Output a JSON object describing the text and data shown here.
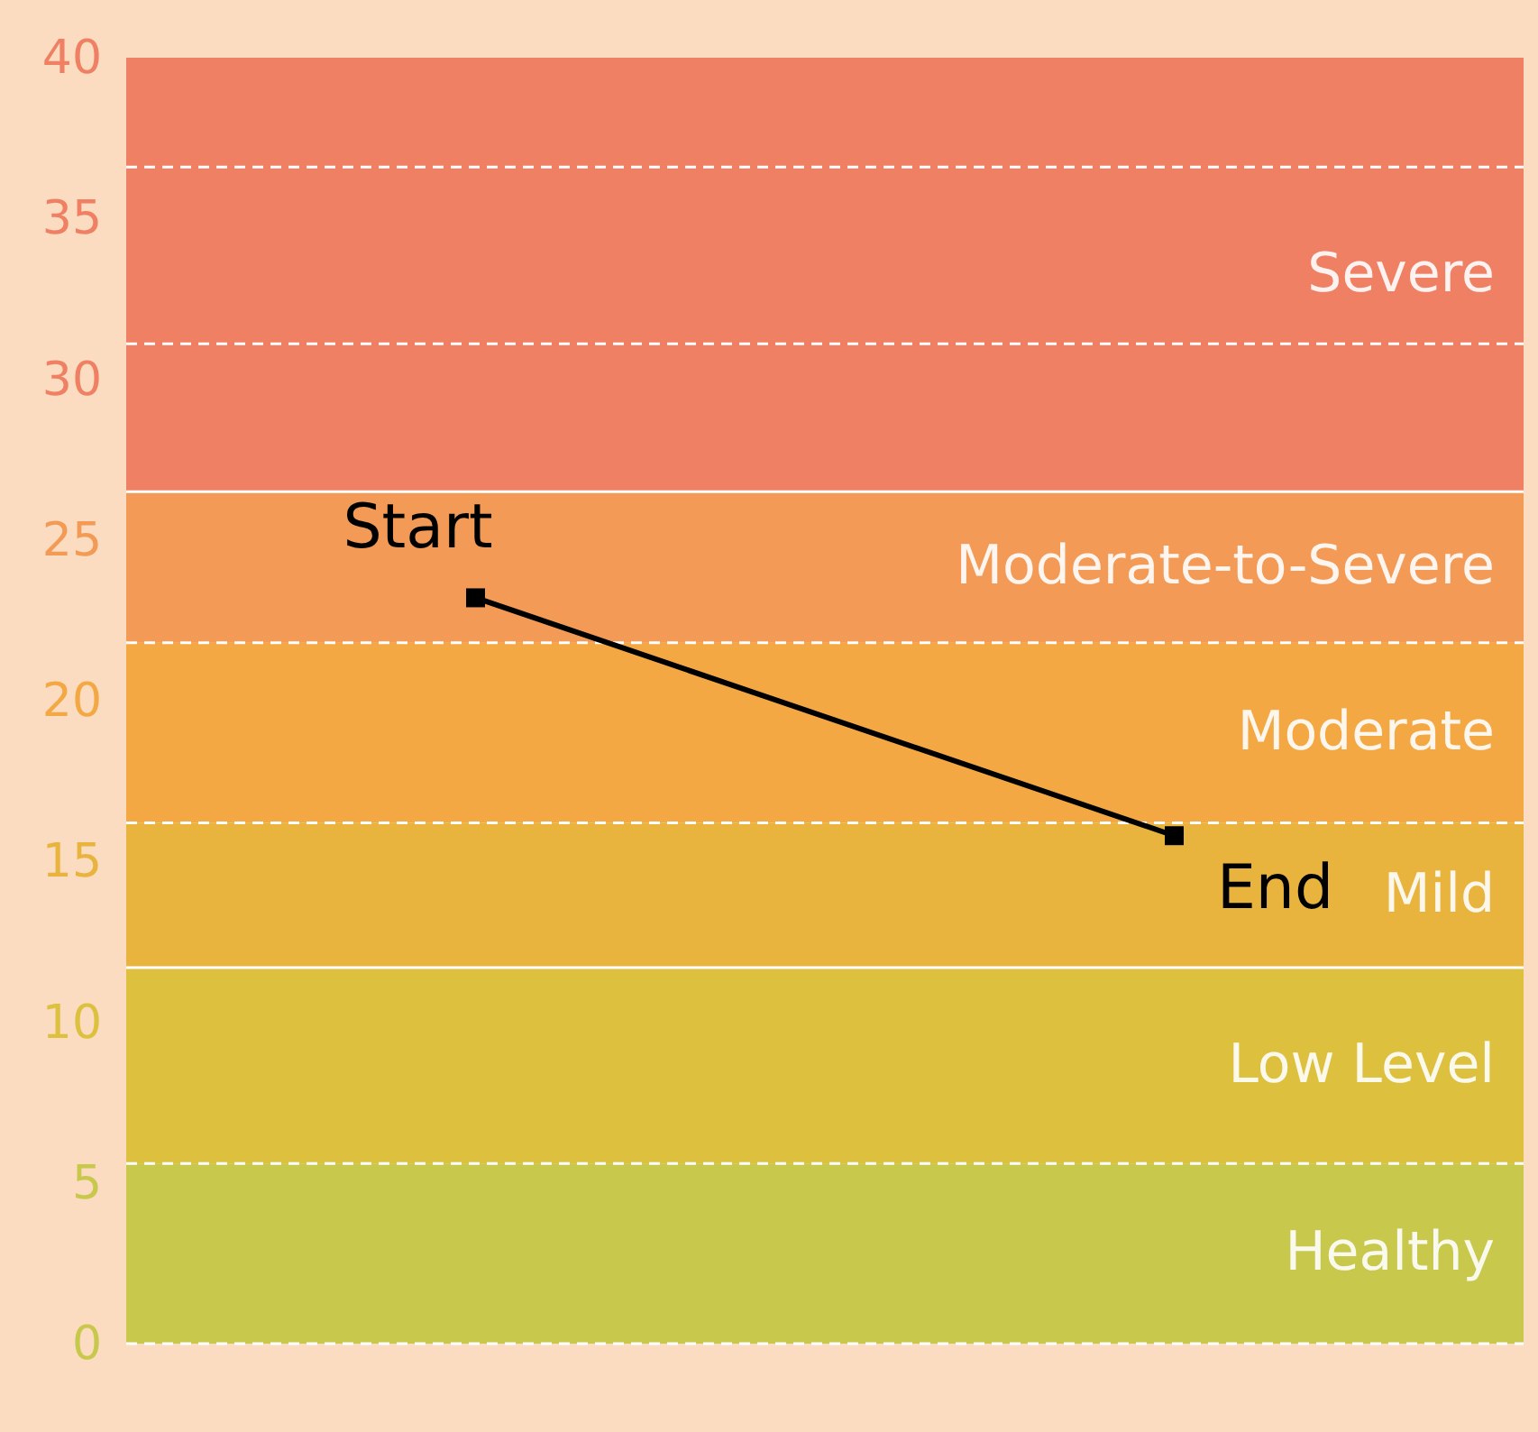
{
  "chart_data": {
    "type": "line",
    "categories": [
      null,
      null
    ],
    "series": [
      {
        "color": "#000000",
        "values": [
          23.2,
          15.8
        ]
      }
    ],
    "marker": "square",
    "line_style": "solid",
    "ylim": [
      0,
      40
    ],
    "yticks": [
      0,
      5,
      10,
      15,
      20,
      25,
      30,
      35,
      40
    ],
    "grid": false,
    "tick_labels": "y",
    "bands": [
      {
        "axis": "y",
        "from": 0,
        "to": 5.6,
        "label": "Healthy",
        "color": "#c8c84c"
      },
      {
        "axis": "y",
        "from": 5.6,
        "to": 11.7,
        "label": "Low Level",
        "color": "#dcc03e"
      },
      {
        "axis": "y",
        "from": 11.7,
        "to": 16.2,
        "label": "Mild",
        "color": "#e9b43e"
      },
      {
        "axis": "y",
        "from": 16.2,
        "to": 21.8,
        "label": "Moderate",
        "color": "#f3a844"
      },
      {
        "axis": "y",
        "from": 21.8,
        "to": 26.5,
        "label": "Moderate-to-Severe",
        "color": "#f29a56"
      },
      {
        "axis": "y",
        "from": 26.5,
        "to": 40,
        "label": "Severe",
        "color": "#ef8064"
      }
    ],
    "ref_lines": [
      {
        "axis": "y",
        "value": 0,
        "line_style": "dashed",
        "color": "#ffffff"
      },
      {
        "axis": "y",
        "value": 5.6,
        "line_style": "dashed",
        "color": "#ffffff"
      },
      {
        "axis": "y",
        "value": 11.7,
        "line_style": "solid",
        "color": "#ffffff"
      },
      {
        "axis": "y",
        "value": 16.2,
        "line_style": "dashed",
        "color": "#ffffff"
      },
      {
        "axis": "y",
        "value": 21.8,
        "line_style": "dashed",
        "color": "#ffffff"
      },
      {
        "axis": "y",
        "value": 26.5,
        "line_style": "solid",
        "color": "#ffffff"
      },
      {
        "axis": "y",
        "value": 31.1,
        "line_style": "dashed",
        "color": "#ffffff"
      },
      {
        "axis": "y",
        "value": 36.6,
        "line_style": "dashed",
        "color": "#ffffff"
      }
    ],
    "annotations": [
      "Start",
      "End"
    ]
  }
}
